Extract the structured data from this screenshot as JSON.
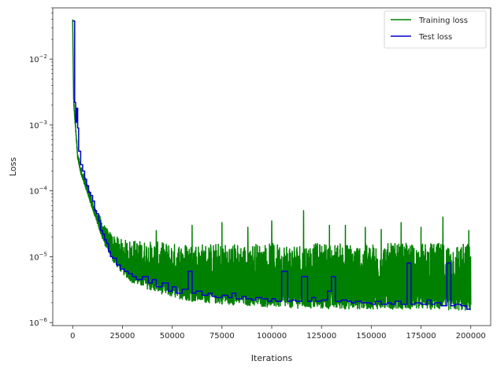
{
  "chart_data": {
    "type": "line",
    "title": "",
    "xlabel": "Iterations",
    "ylabel": "Loss",
    "xscale": "linear",
    "yscale": "log",
    "xlim": [
      -10000,
      210000
    ],
    "ylim": [
      9e-07,
      0.06
    ],
    "x_ticks": [
      0,
      25000,
      50000,
      75000,
      100000,
      125000,
      150000,
      175000,
      200000
    ],
    "x_tick_labels": [
      "0",
      "25000",
      "50000",
      "75000",
      "100000",
      "125000",
      "150000",
      "175000",
      "200000"
    ],
    "y_ticks": [
      1e-06,
      1e-05,
      0.0001,
      0.001,
      0.01
    ],
    "y_tick_labels": [
      {
        "base": "10",
        "exp": "−6"
      },
      {
        "base": "10",
        "exp": "−5"
      },
      {
        "base": "10",
        "exp": "−4"
      },
      {
        "base": "10",
        "exp": "−3"
      },
      {
        "base": "10",
        "exp": "−2"
      }
    ],
    "grid": false,
    "legend_position": "upper right",
    "series": [
      {
        "name": "Training loss",
        "color": "#008000",
        "baseline": {
          "x": [
            0,
            500,
            1500,
            2500,
            4000,
            6000,
            8000,
            10000,
            12000,
            14000,
            16000,
            18000,
            20000,
            25000,
            30000,
            40000,
            50000,
            60000,
            75000,
            100000,
            125000,
            150000,
            175000,
            200000
          ],
          "y": [
            0.04,
            0.002,
            0.0008,
            0.0003,
            0.00018,
            0.00012,
            8e-05,
            5e-05,
            3.5e-05,
            2.2e-05,
            1.5e-05,
            1.2e-05,
            8.5e-06,
            5.5e-06,
            4e-06,
            3e-06,
            2.4e-06,
            2.1e-06,
            1.9e-06,
            1.7e-06,
            1.6e-06,
            1.6e-06,
            1.6e-06,
            1.5e-06
          ]
        },
        "upper_envelope": {
          "x": [
            0,
            500,
            1500,
            2500,
            4000,
            6000,
            8000,
            10000,
            12000,
            14000,
            16000,
            18000,
            20000,
            25000,
            30000,
            40000,
            50000,
            60000,
            75000,
            100000,
            125000,
            150000,
            175000,
            200000
          ],
          "y": [
            0.04,
            0.0025,
            0.001,
            0.0004,
            0.00024,
            0.00017,
            0.00011,
            7e-05,
            5e-05,
            4e-05,
            3e-05,
            2.5e-05,
            2.2e-05,
            1.8e-05,
            1.8e-05,
            1.7e-05,
            1.6e-05,
            1.6e-05,
            1.6e-05,
            1.6e-05,
            1.6e-05,
            1.6e-05,
            1.6e-05,
            1.6e-05
          ]
        },
        "peaks": [
          {
            "x": 116000,
            "y": 5e-05
          },
          {
            "x": 100000,
            "y": 3.5e-05
          },
          {
            "x": 186000,
            "y": 4e-05
          },
          {
            "x": 165000,
            "y": 3.3e-05
          },
          {
            "x": 75000,
            "y": 3.3e-05
          },
          {
            "x": 60000,
            "y": 3e-05
          },
          {
            "x": 129000,
            "y": 3e-05
          },
          {
            "x": 137000,
            "y": 3e-05
          },
          {
            "x": 147000,
            "y": 2.8e-05
          },
          {
            "x": 175000,
            "y": 2.8e-05
          },
          {
            "x": 155000,
            "y": 2.6e-05
          },
          {
            "x": 199000,
            "y": 2.5e-05
          },
          {
            "x": 42000,
            "y": 2.5e-05
          },
          {
            "x": 88000,
            "y": 2.8e-05
          }
        ]
      },
      {
        "name": "Test loss",
        "color": "#0000cc",
        "x": [
          0,
          500,
          1000,
          1500,
          2000,
          2500,
          3000,
          4000,
          5000,
          6000,
          7000,
          8000,
          9000,
          10000,
          11000,
          12000,
          13000,
          14000,
          15000,
          16000,
          17000,
          18000,
          19000,
          20000,
          22000,
          24000,
          26000,
          28000,
          30000,
          32000,
          35000,
          38000,
          40000,
          42000,
          45000,
          48000,
          50000,
          52000,
          55000,
          58000,
          60000,
          62000,
          65000,
          68000,
          70000,
          72000,
          75000,
          78000,
          80000,
          82000,
          85000,
          87000,
          90000,
          92000,
          95000,
          98000,
          100000,
          102000,
          105000,
          108000,
          110000,
          112000,
          115000,
          118000,
          120000,
          122000,
          125000,
          128000,
          130000,
          132000,
          135000,
          138000,
          140000,
          142000,
          145000,
          148000,
          150000,
          152000,
          155000,
          158000,
          160000,
          162000,
          165000,
          168000,
          170000,
          172000,
          175000,
          178000,
          180000,
          182000,
          185000,
          188000,
          190000,
          192000,
          195000,
          198000,
          200000
        ],
        "y": [
          0.038,
          0.038,
          0.0022,
          0.0011,
          0.0018,
          0.0009,
          0.0004,
          0.00025,
          0.0002,
          0.00015,
          0.00012,
          9.5e-05,
          8.5e-05,
          7e-05,
          5e-05,
          4.5e-05,
          3.5e-05,
          2.5e-05,
          2.2e-05,
          1.8e-05,
          1.6e-05,
          1.2e-05,
          1e-05,
          9.5e-06,
          7.5e-06,
          6.5e-06,
          6e-06,
          5.5e-06,
          5e-06,
          4.5e-06,
          5e-06,
          4e-06,
          4.5e-06,
          3.5e-06,
          4e-06,
          3e-06,
          3.5e-06,
          2.8e-06,
          3.2e-06,
          6e-06,
          2.8e-06,
          3e-06,
          2.6e-06,
          2.8e-06,
          2.5e-06,
          2.4e-06,
          2.6e-06,
          2.4e-06,
          2.8e-06,
          2.3e-06,
          2.5e-06,
          2.3e-06,
          2.2e-06,
          2.4e-06,
          2.3e-06,
          2.1e-06,
          2.3e-06,
          2.1e-06,
          6e-06,
          2.1e-06,
          2.2e-06,
          2.1e-06,
          5e-06,
          2.1e-06,
          2.4e-06,
          2.1e-06,
          2.2e-06,
          3e-06,
          5e-06,
          2.1e-06,
          2.2e-06,
          2.1e-06,
          2e-06,
          2.1e-06,
          2e-06,
          2e-06,
          1.9e-06,
          2.1e-06,
          1.9e-06,
          2e-06,
          1.9e-06,
          2.1e-06,
          1.9e-06,
          8e-06,
          1.9e-06,
          2e-06,
          1.9e-06,
          2.2e-06,
          1.9e-06,
          2e-06,
          1.8e-06,
          8e-06,
          1.8e-06,
          1.9e-06,
          1.8e-06,
          1.6e-06,
          1.6e-06
        ]
      }
    ]
  }
}
